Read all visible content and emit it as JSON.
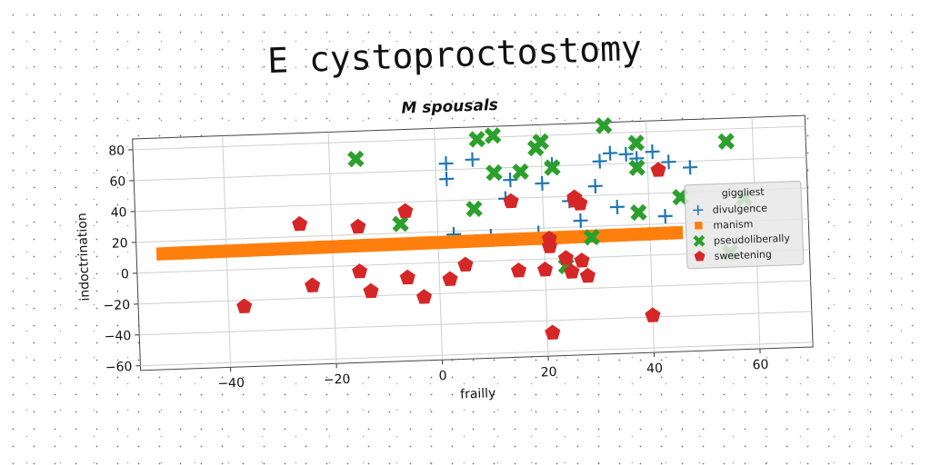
{
  "figure_title": "E cystoproctostomy",
  "chart_data": {
    "type": "scatter",
    "title": "M spousals",
    "xlabel": "frailly",
    "ylabel": "indoctrination",
    "xlim": [
      -57,
      70
    ],
    "ylim": [
      -63,
      87
    ],
    "xticks": [
      -40,
      -20,
      0,
      20,
      40,
      60
    ],
    "yticks": [
      -60,
      -40,
      -20,
      0,
      20,
      40,
      60,
      80
    ],
    "grid": true,
    "legend_title": "giggliest",
    "legend_position": "right",
    "colors": {
      "divulgence": "#1f77b4",
      "manism": "#ff7f0e",
      "pseudoliberally": "#2ca02c",
      "sweetening": "#d62728"
    },
    "series": [
      {
        "name": "divulgence",
        "marker": "plus",
        "points": [
          [
            2,
            64
          ],
          [
            2,
            54
          ],
          [
            7,
            66
          ],
          [
            14,
            52
          ],
          [
            13,
            40
          ],
          [
            20,
            49
          ],
          [
            22,
            61
          ],
          [
            25,
            37
          ],
          [
            27,
            24
          ],
          [
            30,
            46
          ],
          [
            31,
            62
          ],
          [
            33,
            67
          ],
          [
            34,
            32
          ],
          [
            36,
            66
          ],
          [
            38,
            63
          ],
          [
            41,
            67
          ],
          [
            43,
            25
          ],
          [
            44,
            60
          ],
          [
            48,
            56
          ],
          [
            3,
            18
          ],
          [
            10,
            16
          ],
          [
            19,
            17
          ]
        ]
      },
      {
        "name": "manism",
        "marker": "square",
        "line": {
          "x0": -52,
          "x1": 45,
          "y0": 12,
          "y1": 14
        }
      },
      {
        "name": "pseudoliberally",
        "marker": "x",
        "points": [
          [
            -15,
            69
          ],
          [
            -7,
            26
          ],
          [
            7,
            34
          ],
          [
            8,
            79
          ],
          [
            11,
            81
          ],
          [
            11,
            57
          ],
          [
            16,
            57
          ],
          [
            19,
            72
          ],
          [
            20,
            76
          ],
          [
            22,
            59
          ],
          [
            29,
            13
          ],
          [
            32,
            85
          ],
          [
            38,
            73
          ],
          [
            38,
            57
          ],
          [
            38,
            28
          ],
          [
            46,
            37
          ],
          [
            55,
            72
          ],
          [
            55,
            0
          ],
          [
            58,
            35
          ],
          [
            24,
            -5
          ]
        ]
      },
      {
        "name": "sweetening",
        "marker": "pentagon",
        "points": [
          [
            -37,
            -24
          ],
          [
            -26,
            28
          ],
          [
            -24,
            -12
          ],
          [
            -15,
            25
          ],
          [
            -15,
            -4
          ],
          [
            -13,
            -17
          ],
          [
            -6,
            -9
          ],
          [
            -6,
            34
          ],
          [
            -3,
            -22
          ],
          [
            2,
            -11
          ],
          [
            5,
            -2
          ],
          [
            14,
            38
          ],
          [
            15,
            -7
          ],
          [
            20,
            -7
          ],
          [
            21,
            13
          ],
          [
            21,
            8
          ],
          [
            21,
            -48
          ],
          [
            24,
            0
          ],
          [
            25,
            -9
          ],
          [
            26,
            37
          ],
          [
            26,
            39
          ],
          [
            27,
            35
          ],
          [
            27,
            -2
          ],
          [
            28,
            -12
          ],
          [
            40,
            -39
          ],
          [
            42,
            55
          ]
        ]
      }
    ]
  }
}
